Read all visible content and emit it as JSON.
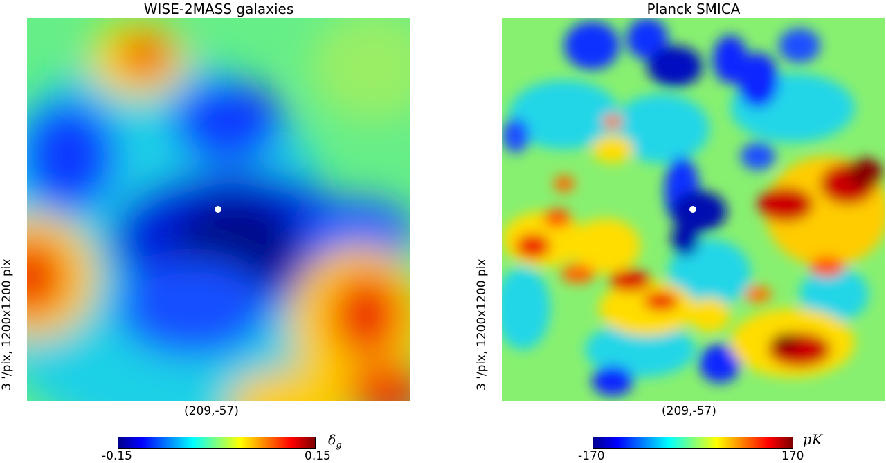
{
  "panels": [
    {
      "title": "WISE-2MASS galaxies",
      "ylabel": "3 '/pix,   1200x1200 pix",
      "center_label": "(209,-57)",
      "colorbar": {
        "min_label": "-0.15",
        "max_label": "0.15",
        "unit": "δ",
        "unit_sub": "g"
      }
    },
    {
      "title": "Planck SMICA",
      "ylabel": "3 '/pix,   1200x1200 pix",
      "center_label": "(209,-57)",
      "colorbar": {
        "min_label": "-170",
        "max_label": "170",
        "unit": "μK",
        "unit_sub": ""
      }
    }
  ],
  "chart_data": [
    {
      "type": "heatmap",
      "title": "WISE-2MASS galaxies",
      "colormap": "jet",
      "value_range": [
        -0.15,
        0.15
      ],
      "colorbar_label": "δ_g",
      "center_coordinates": "(209,-57)",
      "marker": "center point (white dot)",
      "xlabel": "(209,-57)",
      "ylabel": "3 '/pix,   1200x1200 pix"
    },
    {
      "type": "heatmap",
      "title": "Planck SMICA",
      "colormap": "jet",
      "value_range": [
        -170,
        170
      ],
      "colorbar_label": "μK",
      "center_coordinates": "(209,-57)",
      "marker": "center point (white dot)",
      "xlabel": "(209,-57)",
      "ylabel": "3 '/pix,   1200x1200 pix"
    }
  ]
}
